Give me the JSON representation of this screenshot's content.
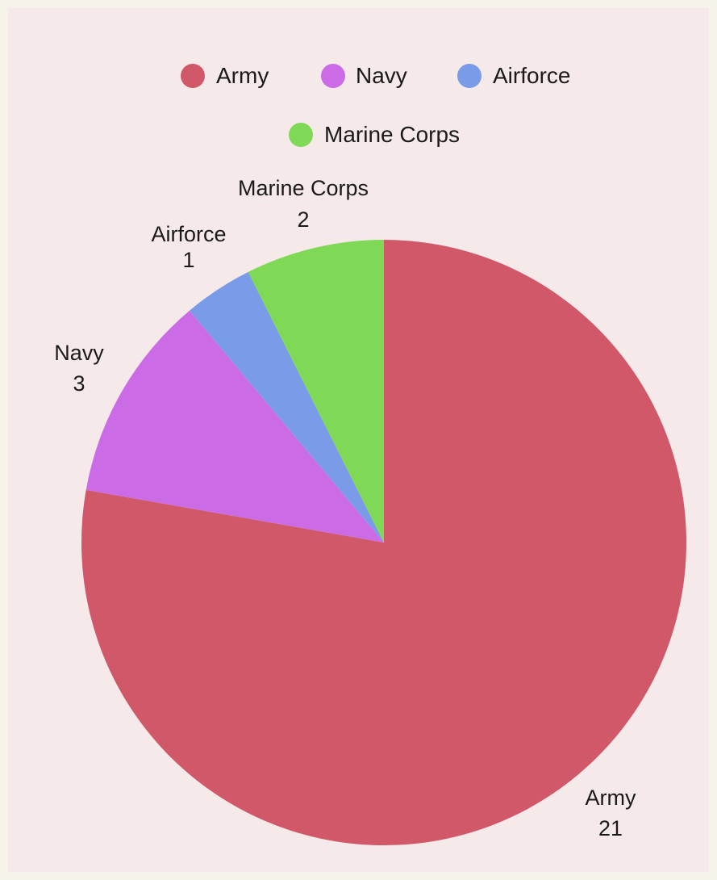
{
  "chart_data": {
    "type": "pie",
    "categories": [
      "Army",
      "Navy",
      "Airforce",
      "Marine Corps"
    ],
    "values": [
      21,
      3,
      1,
      2
    ],
    "colors": [
      "#d05868",
      "#cb6be6",
      "#7a9be8",
      "#7fd957"
    ],
    "title": "",
    "legend_position": "top",
    "start_angle": "12 o'clock",
    "direction": "clockwise",
    "show_data_labels": true
  }
}
